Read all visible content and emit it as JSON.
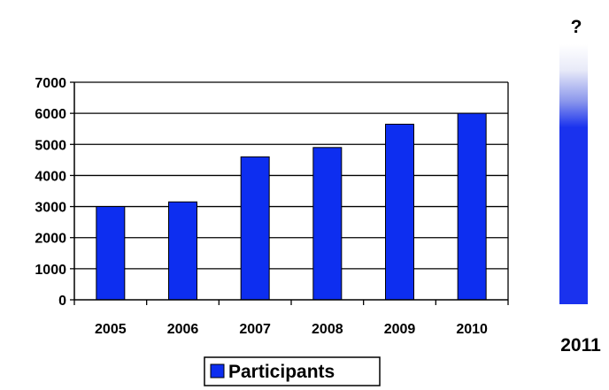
{
  "chart_data": {
    "type": "bar",
    "categories": [
      "2005",
      "2006",
      "2007",
      "2008",
      "2009",
      "2010"
    ],
    "series": [
      {
        "name": "Participants",
        "values": [
          3000,
          3150,
          4600,
          4900,
          5650,
          6000
        ]
      }
    ],
    "ylim": [
      0,
      7000
    ],
    "yticks": [
      "0",
      "1000",
      "2000",
      "3000",
      "4000",
      "5000",
      "6000",
      "7000"
    ],
    "grid": true,
    "legend": "bottom",
    "bar_color": "#0d2ef0",
    "future_bar": {
      "label": "2011",
      "marker": "?",
      "color": "#1a32ee",
      "fade_to": "#ffffff"
    }
  }
}
